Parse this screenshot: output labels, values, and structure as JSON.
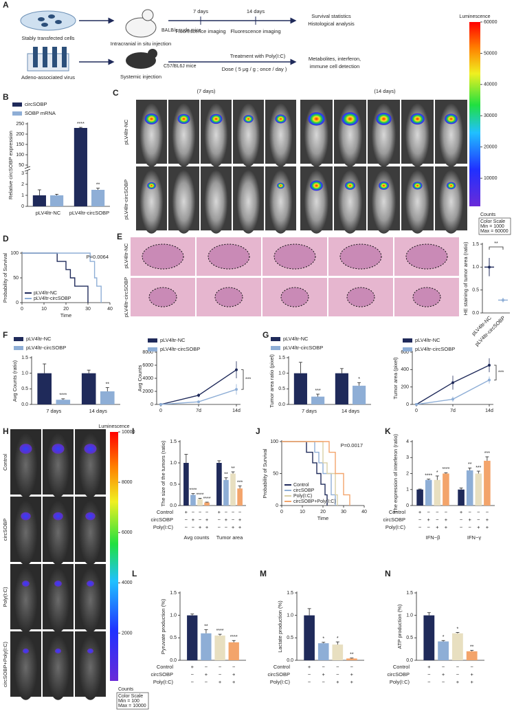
{
  "schematic": {
    "panel": "A",
    "row1": {
      "source": "Stably transfected cells",
      "injection": "Intracranial in situ injection",
      "mice": "BALB/c nude mice",
      "timepoints": [
        "7 days",
        "14 days"
      ],
      "imaging": [
        "Fluorescence imaging",
        "Fluorescence imaging"
      ],
      "outcome": [
        "Survival statistics",
        "Histological analysis"
      ]
    },
    "row2": {
      "source": "Adeno-associated virus",
      "injection": "Systemic injection",
      "mice": "C57/BL6J mice",
      "treatment": "Treatment with Poly(I:C)",
      "dose": "Dose ( 5 μg / g ; once / day )",
      "outcome": [
        "Metabolites, interferon,",
        "immune cell detection"
      ]
    }
  },
  "imaging_C": {
    "panel": "C",
    "timepoints": [
      "(7 days)",
      "(14 days)"
    ],
    "rows": [
      "pLV4ltr-NC",
      "pLV4ltr-circSOBP"
    ]
  },
  "histology_E": {
    "panel": "E",
    "rows": [
      "pLV4ltr-NC",
      "pLV4ltr-circSOBP"
    ]
  },
  "imaging_H": {
    "panel": "H",
    "rows": [
      "Control",
      "circSOBP",
      "Poly(I:C)",
      "circSOBP+Poly(I:C)"
    ]
  },
  "colorbars": [
    {
      "title": "Luminescence",
      "lim": [
        1000,
        60000
      ],
      "ticks": [
        10000,
        20000,
        30000,
        40000,
        50000,
        60000
      ],
      "unit": "Counts",
      "scale_title": "Color Scale",
      "min": "Min = 1000",
      "max": "Max = 60000"
    },
    {
      "title": "Luminescence",
      "lim": [
        100,
        10000
      ],
      "ticks": [
        2000,
        4000,
        6000,
        8000,
        10000
      ],
      "unit": "Counts",
      "scale_title": "Color Scale",
      "min": "Min = 100",
      "max": "Max = 10000"
    }
  ],
  "chart_data": [
    {
      "type": "bar",
      "panel": "B",
      "ylabel": "Relative circSOBP expression",
      "categories": [
        "pLV4ltr-NC",
        "pLV4ltr-circSOBP"
      ],
      "series": [
        {
          "name": "circSOBP",
          "color": "#1f2a5a",
          "values": [
            1,
            230
          ],
          "errors": [
            0.5,
            3
          ],
          "significance": [
            null,
            "****"
          ]
        },
        {
          "name": "SOBP mRNA",
          "color": "#8eaed6",
          "values": [
            1,
            1.5
          ],
          "errors": [
            0.1,
            0.15
          ],
          "significance": [
            null,
            "**"
          ]
        }
      ],
      "ylim": [
        0,
        250
      ],
      "yticks": [
        0,
        1,
        2,
        3,
        50,
        100,
        150,
        200,
        250
      ],
      "axis_break": [
        3,
        50
      ]
    },
    {
      "type": "survival",
      "panel": "D",
      "xlabel": "Time",
      "ylabel": "Probability of Survival",
      "annotation": "P=0.0064",
      "legend": "lower-left",
      "xlim": [
        0,
        40
      ],
      "xticks": [
        0,
        10,
        20,
        30,
        40
      ],
      "ylim": [
        0,
        100
      ],
      "yticks": [
        0,
        50,
        100
      ],
      "series": [
        {
          "name": "pLV4ltr-NC",
          "color": "#1f2a5a",
          "x": [
            0,
            16,
            20,
            22,
            24,
            30
          ],
          "values": [
            100,
            83.3,
            66.7,
            50,
            33.3,
            0
          ]
        },
        {
          "name": "pLV4ltr-circSOBP",
          "color": "#8eaed6",
          "x": [
            0,
            31,
            33,
            34,
            36
          ],
          "values": [
            100,
            83.3,
            50,
            33.3,
            0
          ]
        }
      ]
    },
    {
      "type": "dotbar",
      "ylabel": "HE staining of tumor area (ratio)",
      "categories": [
        "pLV4ltr-NC",
        "pLV4ltr-circSOBP"
      ],
      "values": [
        1.0,
        0.28
      ],
      "errors": [
        0.2,
        0.05
      ],
      "colors": [
        "#1f2a5a",
        "#8eaed6"
      ],
      "annotation": "**",
      "ylim": [
        0,
        1.5
      ],
      "yticks": [
        {
          "value": 0,
          "label": "0.0"
        },
        0.5,
        {
          "value": 1,
          "label": "1.0"
        },
        1.5
      ]
    },
    {
      "type": "bar",
      "panel": "F",
      "ylabel": "Avg Counts (ratio)",
      "categories": [
        "7 days",
        "14 days"
      ],
      "series": [
        {
          "name": "pLV4ltr-NC",
          "color": "#1f2a5a",
          "values": [
            1.0,
            1.0
          ],
          "errors": [
            0.3,
            0.1
          ],
          "significance": [
            null,
            null
          ]
        },
        {
          "name": "pLV4ltr-circSOBP",
          "color": "#8eaed6",
          "values": [
            0.15,
            0.42
          ],
          "errors": [
            0.03,
            0.12
          ],
          "significance": [
            "****",
            "**"
          ]
        }
      ],
      "ylim": [
        0,
        1.5
      ],
      "yticks": [
        {
          "value": 0,
          "label": "0.0"
        },
        0.5,
        {
          "value": 1,
          "label": "1.0"
        },
        1.5
      ]
    },
    {
      "type": "line",
      "ylabel": "Avg Counts",
      "categories": [
        "0",
        "7d",
        "14d"
      ],
      "annotation": "***",
      "series": [
        {
          "name": "pLV4ltr-NC",
          "color": "#1f2a5a",
          "values": [
            0,
            1400,
            5300
          ],
          "errors": [
            0,
            300,
            1300
          ]
        },
        {
          "name": "pLV4ltr-circSOBP",
          "color": "#8eaed6",
          "values": [
            0,
            400,
            2300
          ],
          "errors": [
            0,
            200,
            800
          ]
        }
      ],
      "ylim": [
        0,
        8000
      ],
      "yticks": [
        0,
        2000,
        4000,
        6000,
        8000
      ]
    },
    {
      "type": "bar",
      "panel": "G",
      "ylabel": "Tumor area ratio (pixel)",
      "categories": [
        "7 days",
        "14 days"
      ],
      "series": [
        {
          "name": "pLV4ltr-NC",
          "color": "#1f2a5a",
          "values": [
            1.0,
            1.0
          ],
          "errors": [
            0.35,
            0.15
          ],
          "significance": [
            null,
            null
          ]
        },
        {
          "name": "pLV4ltr-circSOBP",
          "color": "#8eaed6",
          "values": [
            0.25,
            0.6
          ],
          "errors": [
            0.08,
            0.1
          ],
          "significance": [
            "***",
            "*"
          ]
        }
      ],
      "ylim": [
        0,
        1.5
      ],
      "yticks": [
        {
          "value": 0,
          "label": "0.0"
        },
        0.5,
        {
          "value": 1,
          "label": "1.0"
        },
        1.5
      ]
    },
    {
      "type": "line",
      "ylabel": "Tumor area (pixel)",
      "categories": [
        "0",
        "7d",
        "14d"
      ],
      "annotation": "***",
      "series": [
        {
          "name": "pLV4ltr-NC",
          "color": "#1f2a5a",
          "values": [
            0,
            250,
            450
          ],
          "errors": [
            0,
            80,
            80
          ]
        },
        {
          "name": "pLV4ltr-circSOBP",
          "color": "#8eaed6",
          "values": [
            0,
            60,
            280
          ],
          "errors": [
            0,
            30,
            40
          ]
        }
      ],
      "ylim": [
        0,
        600
      ],
      "yticks": [
        0,
        200,
        400,
        600
      ]
    },
    {
      "type": "bar",
      "panel": "I",
      "ylabel": "The size of the tumors (ratio)",
      "categories": [
        "Avg counts",
        "Tumor area"
      ],
      "series": [
        {
          "color": "#1f2a5a",
          "values": [
            1.0,
            1.0
          ],
          "errors": [
            0.2,
            0.05
          ],
          "significance": [
            null,
            null
          ]
        },
        {
          "color": "#8eaed6",
          "values": [
            0.25,
            0.6
          ],
          "errors": [
            0.03,
            0.05
          ],
          "significance": [
            "****",
            "**"
          ]
        },
        {
          "color": "#e8dfc0",
          "values": [
            0.15,
            0.75
          ],
          "errors": [
            0.02,
            0.04
          ],
          "significance": [
            "****",
            "**"
          ]
        },
        {
          "color": "#f3a46b",
          "values": [
            0.07,
            0.4
          ],
          "errors": [
            0.01,
            0.06
          ],
          "significance": [
            "****",
            "***"
          ]
        }
      ],
      "ylim": [
        0,
        1.5
      ],
      "yticks": [
        {
          "value": 0,
          "label": "0.0"
        },
        0.5,
        {
          "value": 1,
          "label": "1.0"
        },
        1.5
      ],
      "design": {
        "rows": [
          "Control",
          "circSOBP",
          "Poly(I:C)"
        ],
        "signs": [
          [
            "+",
            "−",
            "−",
            "−",
            "+",
            "−",
            "−",
            "−"
          ],
          [
            "−",
            "+",
            "−",
            "+",
            "−",
            "+",
            "−",
            "+"
          ],
          [
            "−",
            "−",
            "+",
            "+",
            "−",
            "−",
            "+",
            "+"
          ]
        ]
      }
    },
    {
      "type": "survival",
      "panel": "J",
      "xlabel": "Time",
      "ylabel": "Probability of Survival",
      "annotation": "P=0.0017",
      "legend": "lower-left",
      "xlim": [
        0,
        40
      ],
      "xticks": [
        0,
        10,
        20,
        30,
        40
      ],
      "ylim": [
        0,
        100
      ],
      "yticks": [
        0,
        50,
        100
      ],
      "series": [
        {
          "name": "Control",
          "color": "#1f2a5a",
          "x": [
            0,
            12,
            15,
            17,
            19,
            21,
            22
          ],
          "values": [
            100,
            83.3,
            66.7,
            50,
            33.3,
            16.7,
            0
          ]
        },
        {
          "name": "circSOBP",
          "color": "#8eaed6",
          "x": [
            0,
            16,
            18,
            20,
            24,
            26
          ],
          "values": [
            100,
            83.3,
            66.7,
            50,
            16.7,
            0
          ]
        },
        {
          "name": "Poly(I:C)",
          "color": "#d9cfa6",
          "x": [
            0,
            20,
            22,
            26,
            27
          ],
          "values": [
            100,
            66.7,
            50,
            16.7,
            0
          ]
        },
        {
          "name": "circSOBP+Poly(I:C)",
          "color": "#f3a46b",
          "x": [
            0,
            23,
            26,
            30,
            33
          ],
          "values": [
            100,
            83.3,
            50,
            16.7,
            0
          ]
        }
      ]
    },
    {
      "type": "bar",
      "panel": "K",
      "ylabel": "The expression of interferon (ratio)",
      "categories": [
        "IFN−β",
        "IFN−γ"
      ],
      "series": [
        {
          "color": "#1f2a5a",
          "values": [
            1.0,
            1.0
          ],
          "errors": [
            0.03,
            0.1
          ],
          "significance": [
            null,
            null
          ]
        },
        {
          "color": "#8eaed6",
          "values": [
            1.6,
            2.2
          ],
          "errors": [
            0.05,
            0.15
          ],
          "significance": [
            "****",
            "**"
          ]
        },
        {
          "color": "#e8dfc0",
          "values": [
            1.6,
            2.0
          ],
          "errors": [
            0.25,
            0.15
          ],
          "significance": [
            "*",
            "***"
          ]
        },
        {
          "color": "#f3a46b",
          "values": [
            2.0,
            2.8
          ],
          "errors": [
            0.05,
            0.25
          ],
          "significance": [
            "****",
            "***"
          ]
        }
      ],
      "ylim": [
        0,
        4
      ],
      "yticks": [
        0,
        1,
        2,
        3,
        4
      ],
      "design": {
        "rows": [
          "Control",
          "circSOBP",
          "Poly(I:C)"
        ],
        "signs": [
          [
            "+",
            "−",
            "−",
            "−",
            "+",
            "−",
            "−",
            "−"
          ],
          [
            "−",
            "+",
            "−",
            "+",
            "−",
            "+",
            "−",
            "+"
          ],
          [
            "−",
            "−",
            "+",
            "+",
            "−",
            "−",
            "+",
            "+"
          ]
        ]
      }
    },
    {
      "type": "bar",
      "panel": "L",
      "ylabel": "Pyruvate production (%)",
      "categories": [
        null
      ],
      "series": [
        {
          "color": "#1f2a5a",
          "values": [
            1.0
          ],
          "errors": [
            0.03
          ],
          "significance": [
            null
          ]
        },
        {
          "color": "#8eaed6",
          "values": [
            0.6
          ],
          "errors": [
            0.08
          ],
          "significance": [
            "**"
          ]
        },
        {
          "color": "#e8dfc0",
          "values": [
            0.55
          ],
          "errors": [
            0.03
          ],
          "significance": [
            "****"
          ]
        },
        {
          "color": "#f3a46b",
          "values": [
            0.4
          ],
          "errors": [
            0.04
          ],
          "significance": [
            "****"
          ]
        }
      ],
      "ylim": [
        0,
        1.5
      ],
      "yticks": [
        {
          "value": 0,
          "label": "0.0"
        },
        0.5,
        {
          "value": 1,
          "label": "1.0"
        },
        1.5
      ],
      "design": {
        "rows": [
          "Control",
          "circSOBP",
          "Poly(I:C)"
        ],
        "signs": [
          [
            "+",
            "−",
            "−",
            "−"
          ],
          [
            "−",
            "+",
            "−",
            "+"
          ],
          [
            "−",
            "−",
            "+",
            "+"
          ]
        ]
      }
    },
    {
      "type": "bar",
      "panel": "M",
      "ylabel": "Lactate production (%)",
      "categories": [
        null
      ],
      "series": [
        {
          "color": "#1f2a5a",
          "values": [
            1.0
          ],
          "errors": [
            0.15
          ],
          "significance": [
            null
          ]
        },
        {
          "color": "#8eaed6",
          "values": [
            0.38
          ],
          "errors": [
            0.02
          ],
          "significance": [
            "*"
          ]
        },
        {
          "color": "#e8dfc0",
          "values": [
            0.35
          ],
          "errors": [
            0.06
          ],
          "significance": [
            "*"
          ]
        },
        {
          "color": "#f3a46b",
          "values": [
            0.04
          ],
          "errors": [
            0.01
          ],
          "significance": [
            "**"
          ]
        }
      ],
      "ylim": [
        0,
        1.5
      ],
      "yticks": [
        {
          "value": 0,
          "label": "0.0"
        },
        0.5,
        {
          "value": 1,
          "label": "1.0"
        },
        1.5
      ],
      "design": {
        "rows": [
          "Control",
          "circSOBP",
          "Poly(I:C)"
        ],
        "signs": [
          [
            "+",
            "−",
            "−",
            "−"
          ],
          [
            "−",
            "+",
            "−",
            "+"
          ],
          [
            "−",
            "−",
            "+",
            "+"
          ]
        ]
      }
    },
    {
      "type": "bar",
      "panel": "N",
      "ylabel": "ATP production (%)",
      "categories": [
        null
      ],
      "series": [
        {
          "color": "#1f2a5a",
          "values": [
            1.0
          ],
          "errors": [
            0.06
          ],
          "significance": [
            null
          ]
        },
        {
          "color": "#8eaed6",
          "values": [
            0.42
          ],
          "errors": [
            0.02
          ],
          "significance": [
            "*"
          ]
        },
        {
          "color": "#e8dfc0",
          "values": [
            0.6
          ],
          "errors": [
            0.02
          ],
          "significance": [
            "*"
          ]
        },
        {
          "color": "#f3a46b",
          "values": [
            0.2
          ],
          "errors": [
            0.02
          ],
          "significance": [
            "**"
          ]
        }
      ],
      "ylim": [
        0,
        1.5
      ],
      "yticks": [
        {
          "value": 0,
          "label": "0.0"
        },
        0.5,
        {
          "value": 1,
          "label": "1.0"
        },
        1.5
      ],
      "design": {
        "rows": [
          "Control",
          "circSOBP",
          "Poly(I:C)"
        ],
        "signs": [
          [
            "+",
            "−",
            "−",
            "−"
          ],
          [
            "−",
            "+",
            "−",
            "+"
          ],
          [
            "−",
            "−",
            "+",
            "+"
          ]
        ]
      }
    }
  ]
}
